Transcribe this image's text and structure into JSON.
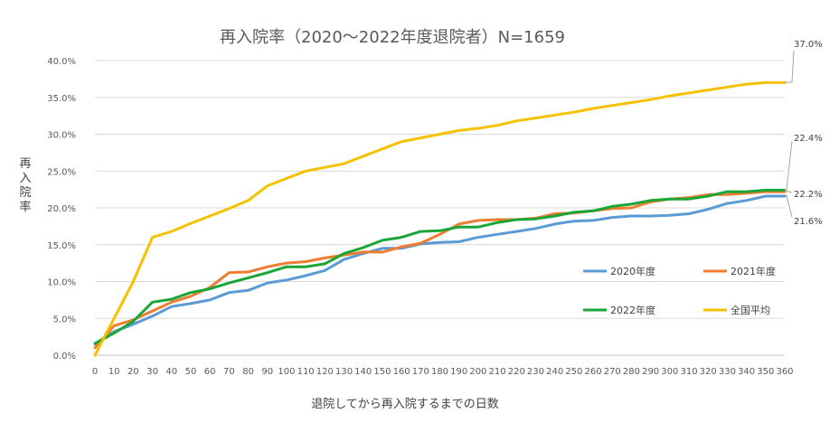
{
  "chart_data": {
    "type": "line",
    "title": "再入院率（2020～2022年度退院者）N=1659",
    "xlabel": "退院してから再入院するまでの日数",
    "ylabel": "再入院率",
    "x": [
      0,
      10,
      20,
      30,
      40,
      50,
      60,
      70,
      80,
      90,
      100,
      110,
      120,
      130,
      140,
      150,
      160,
      170,
      180,
      190,
      200,
      210,
      220,
      230,
      240,
      250,
      260,
      270,
      280,
      290,
      300,
      310,
      320,
      330,
      340,
      350,
      360
    ],
    "xlim": [
      0,
      360
    ],
    "ylim": [
      0,
      40
    ],
    "y_ticks": [
      "0.0%",
      "5.0%",
      "10.0%",
      "15.0%",
      "20.0%",
      "25.0%",
      "30.0%",
      "35.0%",
      "40.0%"
    ],
    "y_tick_values": [
      0,
      5,
      10,
      15,
      20,
      25,
      30,
      35,
      40
    ],
    "x_ticks": [
      "0",
      "10",
      "20",
      "30",
      "40",
      "50",
      "60",
      "70",
      "80",
      "90",
      "100",
      "110",
      "120",
      "130",
      "140",
      "150",
      "160",
      "170",
      "180",
      "190",
      "200",
      "210",
      "220",
      "230",
      "240",
      "250",
      "260",
      "270",
      "280",
      "290",
      "300",
      "310",
      "320",
      "330",
      "340",
      "350",
      "360"
    ],
    "series": [
      {
        "name": "2020年度",
        "color": "#5b9bd5",
        "values": [
          1.5,
          3.2,
          4.2,
          5.3,
          6.6,
          7.0,
          7.5,
          8.5,
          8.8,
          9.8,
          10.2,
          10.8,
          11.5,
          13.0,
          13.8,
          14.5,
          14.5,
          15.1,
          15.3,
          15.4,
          16.0,
          16.4,
          16.8,
          17.2,
          17.8,
          18.2,
          18.3,
          18.7,
          18.9,
          18.9,
          19.0,
          19.2,
          19.8,
          20.6,
          21.0,
          21.6,
          21.6
        ]
      },
      {
        "name": "2021年度",
        "color": "#ed7d31",
        "values": [
          1.0,
          4.0,
          4.8,
          6.0,
          7.2,
          8.0,
          9.2,
          11.2,
          11.3,
          12.0,
          12.5,
          12.7,
          13.2,
          13.6,
          14.0,
          14.0,
          14.7,
          15.2,
          16.4,
          17.8,
          18.3,
          18.4,
          18.4,
          18.6,
          19.2,
          19.3,
          19.6,
          19.9,
          20.0,
          20.8,
          21.2,
          21.4,
          21.8,
          21.8,
          22.0,
          22.2,
          22.2
        ]
      },
      {
        "name": "2022年度",
        "color": "#1aa637",
        "values": [
          1.6,
          3.0,
          4.6,
          7.2,
          7.6,
          8.5,
          9.0,
          9.8,
          10.5,
          11.2,
          12.0,
          12.0,
          12.4,
          13.8,
          14.6,
          15.6,
          16.0,
          16.8,
          16.9,
          17.4,
          17.4,
          18.0,
          18.4,
          18.5,
          18.9,
          19.4,
          19.6,
          20.2,
          20.5,
          21.0,
          21.2,
          21.2,
          21.6,
          22.2,
          22.2,
          22.4,
          22.4
        ]
      },
      {
        "name": "全国平均",
        "color": "#f5c100",
        "values": [
          0.0,
          5.0,
          10.0,
          16.0,
          16.8,
          17.9,
          18.9,
          19.9,
          21.0,
          23.0,
          24.0,
          25.0,
          25.5,
          26.0,
          27.0,
          28.0,
          29.0,
          29.5,
          30.0,
          30.5,
          30.8,
          31.2,
          31.8,
          32.2,
          32.6,
          33.0,
          33.5,
          33.9,
          34.3,
          34.7,
          35.2,
          35.6,
          36.0,
          36.4,
          36.8,
          37.0,
          37.0
        ]
      }
    ],
    "callouts": [
      "37.0%",
      "22.4%",
      "22.2%",
      "21.6%"
    ],
    "legend_position": "right-middle",
    "grid": "horizontal"
  }
}
